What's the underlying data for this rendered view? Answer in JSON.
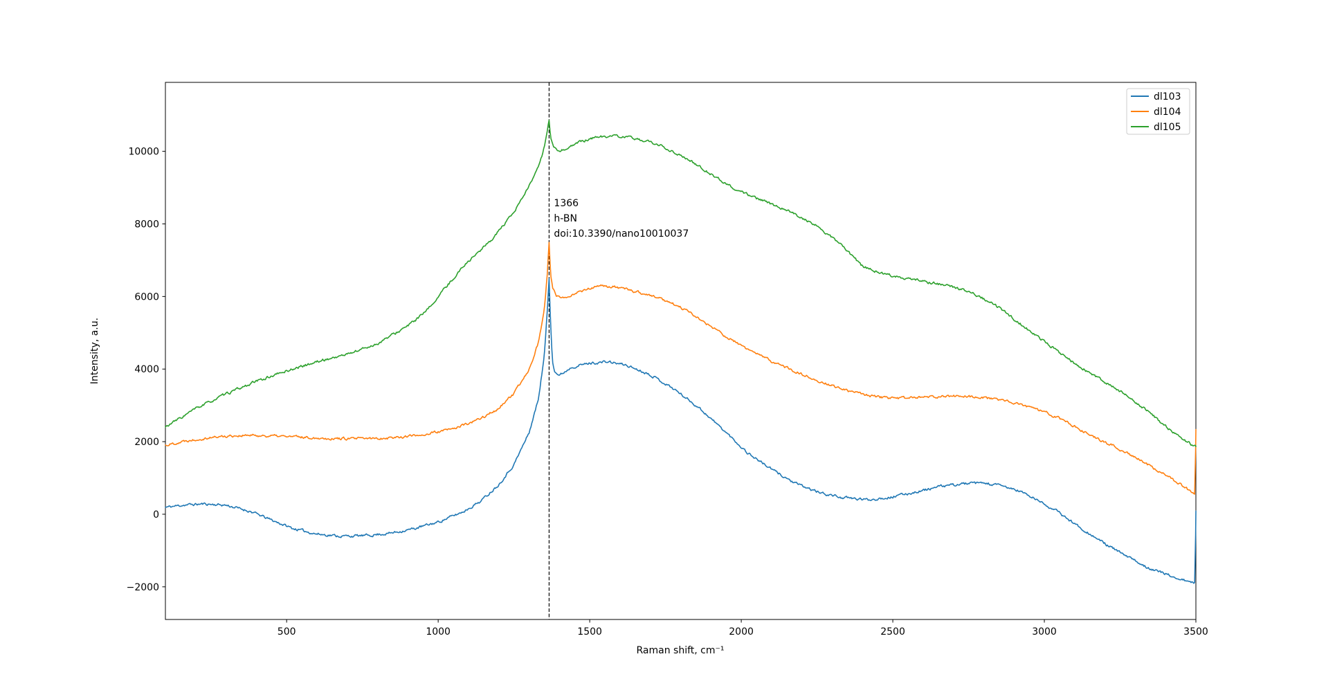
{
  "chart_data": {
    "type": "line",
    "title": "",
    "xlabel": "Raman shift, cm⁻¹",
    "ylabel": "Intensity, a.u.",
    "xlim": [
      100,
      3500
    ],
    "ylim": [
      -2900,
      11900
    ],
    "xticks": [
      500,
      1000,
      1500,
      2000,
      2500,
      3000,
      3500
    ],
    "xticklabels": [
      "500",
      "1000",
      "1500",
      "2000",
      "2500",
      "3000",
      "3500"
    ],
    "yticks": [
      -2000,
      0,
      2000,
      4000,
      6000,
      8000,
      10000
    ],
    "yticklabels": [
      "−2000",
      "0",
      "2000",
      "4000",
      "6000",
      "8000",
      "10000"
    ],
    "grid": false,
    "annotation": {
      "x": 1366,
      "lines": [
        "1366",
        "h-BN",
        "doi:10.3390/nano10010037"
      ],
      "line_style": "dashed",
      "line_color": "#000000"
    },
    "legend": {
      "position": "upper right",
      "entries": [
        {
          "label": "dl103",
          "color": "#1f77b4"
        },
        {
          "label": "dl104",
          "color": "#ff7f0e"
        },
        {
          "label": "dl105",
          "color": "#2ca02c"
        }
      ]
    },
    "noise_amplitude": 30,
    "series": [
      {
        "name": "dl103",
        "color": "#1f77b4",
        "seed": 11,
        "keypoints": [
          [
            100,
            190
          ],
          [
            160,
            255
          ],
          [
            230,
            285
          ],
          [
            300,
            250
          ],
          [
            380,
            80
          ],
          [
            450,
            -160
          ],
          [
            520,
            -390
          ],
          [
            600,
            -545
          ],
          [
            680,
            -605
          ],
          [
            760,
            -590
          ],
          [
            840,
            -525
          ],
          [
            920,
            -400
          ],
          [
            1000,
            -215
          ],
          [
            1080,
            60
          ],
          [
            1140,
            360
          ],
          [
            1200,
            820
          ],
          [
            1250,
            1370
          ],
          [
            1300,
            2250
          ],
          [
            1330,
            3150
          ],
          [
            1350,
            4350
          ],
          [
            1360,
            5600
          ],
          [
            1366,
            6500
          ],
          [
            1371,
            5250
          ],
          [
            1377,
            4250
          ],
          [
            1385,
            3930
          ],
          [
            1400,
            3820
          ],
          [
            1440,
            4060
          ],
          [
            1500,
            4160
          ],
          [
            1560,
            4200
          ],
          [
            1620,
            4110
          ],
          [
            1700,
            3850
          ],
          [
            1780,
            3440
          ],
          [
            1860,
            2940
          ],
          [
            1940,
            2330
          ],
          [
            2020,
            1700
          ],
          [
            2100,
            1240
          ],
          [
            2180,
            840
          ],
          [
            2260,
            590
          ],
          [
            2340,
            450
          ],
          [
            2420,
            400
          ],
          [
            2500,
            480
          ],
          [
            2580,
            620
          ],
          [
            2660,
            770
          ],
          [
            2740,
            845
          ],
          [
            2800,
            855
          ],
          [
            2860,
            780
          ],
          [
            2920,
            635
          ],
          [
            2980,
            375
          ],
          [
            3040,
            90
          ],
          [
            3100,
            -260
          ],
          [
            3180,
            -710
          ],
          [
            3260,
            -1110
          ],
          [
            3340,
            -1460
          ],
          [
            3420,
            -1710
          ],
          [
            3490,
            -1895
          ],
          [
            3497,
            -1900
          ],
          [
            3500,
            60
          ]
        ]
      },
      {
        "name": "dl104",
        "color": "#ff7f0e",
        "seed": 22,
        "keypoints": [
          [
            100,
            1900
          ],
          [
            170,
            2030
          ],
          [
            240,
            2110
          ],
          [
            320,
            2165
          ],
          [
            400,
            2170
          ],
          [
            480,
            2150
          ],
          [
            560,
            2120
          ],
          [
            640,
            2090
          ],
          [
            720,
            2080
          ],
          [
            800,
            2090
          ],
          [
            880,
            2130
          ],
          [
            960,
            2205
          ],
          [
            1040,
            2335
          ],
          [
            1120,
            2555
          ],
          [
            1190,
            2860
          ],
          [
            1250,
            3310
          ],
          [
            1300,
            4000
          ],
          [
            1330,
            4720
          ],
          [
            1350,
            5620
          ],
          [
            1360,
            6620
          ],
          [
            1366,
            7500
          ],
          [
            1371,
            6580
          ],
          [
            1378,
            6240
          ],
          [
            1390,
            6000
          ],
          [
            1410,
            5950
          ],
          [
            1440,
            6060
          ],
          [
            1500,
            6230
          ],
          [
            1540,
            6290
          ],
          [
            1580,
            6260
          ],
          [
            1640,
            6160
          ],
          [
            1700,
            6030
          ],
          [
            1760,
            5860
          ],
          [
            1830,
            5560
          ],
          [
            1900,
            5170
          ],
          [
            1970,
            4790
          ],
          [
            2040,
            4460
          ],
          [
            2110,
            4180
          ],
          [
            2190,
            3890
          ],
          [
            2270,
            3630
          ],
          [
            2350,
            3400
          ],
          [
            2430,
            3250
          ],
          [
            2500,
            3190
          ],
          [
            2570,
            3210
          ],
          [
            2650,
            3245
          ],
          [
            2720,
            3260
          ],
          [
            2790,
            3235
          ],
          [
            2860,
            3130
          ],
          [
            2930,
            3010
          ],
          [
            3000,
            2820
          ],
          [
            3080,
            2520
          ],
          [
            3160,
            2160
          ],
          [
            3240,
            1830
          ],
          [
            3320,
            1480
          ],
          [
            3400,
            1080
          ],
          [
            3470,
            710
          ],
          [
            3494,
            565
          ],
          [
            3497,
            560
          ],
          [
            3500,
            2350
          ]
        ]
      },
      {
        "name": "dl105",
        "color": "#2ca02c",
        "seed": 33,
        "keypoints": [
          [
            100,
            2400
          ],
          [
            200,
            2910
          ],
          [
            300,
            3310
          ],
          [
            400,
            3660
          ],
          [
            500,
            3950
          ],
          [
            600,
            4200
          ],
          [
            700,
            4410
          ],
          [
            800,
            4700
          ],
          [
            900,
            5190
          ],
          [
            960,
            5580
          ],
          [
            1020,
            6200
          ],
          [
            1090,
            6900
          ],
          [
            1170,
            7510
          ],
          [
            1250,
            8300
          ],
          [
            1320,
            9350
          ],
          [
            1345,
            9920
          ],
          [
            1358,
            10460
          ],
          [
            1366,
            10860
          ],
          [
            1372,
            10340
          ],
          [
            1380,
            10090
          ],
          [
            1400,
            10000
          ],
          [
            1430,
            10110
          ],
          [
            1470,
            10260
          ],
          [
            1520,
            10390
          ],
          [
            1570,
            10420
          ],
          [
            1620,
            10390
          ],
          [
            1680,
            10300
          ],
          [
            1740,
            10130
          ],
          [
            1800,
            9890
          ],
          [
            1860,
            9590
          ],
          [
            1920,
            9270
          ],
          [
            1980,
            8960
          ],
          [
            2050,
            8700
          ],
          [
            2150,
            8390
          ],
          [
            2250,
            7940
          ],
          [
            2330,
            7420
          ],
          [
            2400,
            6830
          ],
          [
            2470,
            6620
          ],
          [
            2550,
            6500
          ],
          [
            2640,
            6360
          ],
          [
            2700,
            6260
          ],
          [
            2760,
            6110
          ],
          [
            2820,
            5860
          ],
          [
            2880,
            5510
          ],
          [
            2950,
            5060
          ],
          [
            3020,
            4640
          ],
          [
            3100,
            4150
          ],
          [
            3180,
            3740
          ],
          [
            3260,
            3340
          ],
          [
            3340,
            2840
          ],
          [
            3420,
            2290
          ],
          [
            3490,
            1900
          ],
          [
            3500,
            1860
          ]
        ]
      }
    ]
  }
}
